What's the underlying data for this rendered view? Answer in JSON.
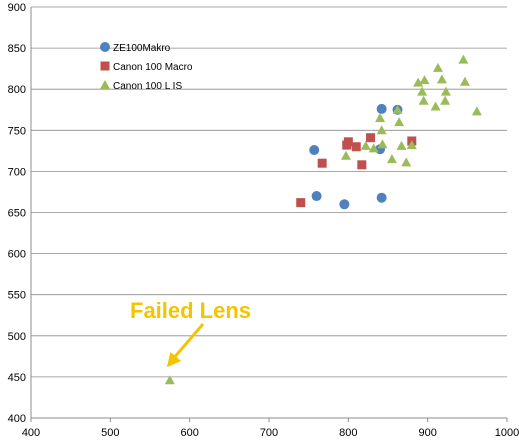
{
  "chart_data": {
    "type": "scatter",
    "title": "",
    "xlabel": "",
    "ylabel": "",
    "xlim": [
      400,
      1000
    ],
    "ylim": [
      400,
      900
    ],
    "x_ticks": [
      400,
      500,
      600,
      700,
      800,
      900,
      1000
    ],
    "y_ticks": [
      400,
      450,
      500,
      550,
      600,
      650,
      700,
      750,
      800,
      850,
      900
    ],
    "grid": "horizontal",
    "legend_placement": "upper-left inside plot",
    "series": [
      {
        "name": "ZE100Makro",
        "color": "#4f81bd",
        "marker": "circle",
        "points": [
          {
            "x": 757,
            "y": 726
          },
          {
            "x": 760,
            "y": 670
          },
          {
            "x": 795,
            "y": 660
          },
          {
            "x": 840,
            "y": 727
          },
          {
            "x": 842,
            "y": 776
          },
          {
            "x": 842,
            "y": 668
          },
          {
            "x": 862,
            "y": 775
          }
        ]
      },
      {
        "name": "Canon 100 Macro",
        "color": "#c0504d",
        "marker": "square",
        "points": [
          {
            "x": 740,
            "y": 662
          },
          {
            "x": 767,
            "y": 710
          },
          {
            "x": 798,
            "y": 732
          },
          {
            "x": 800,
            "y": 736
          },
          {
            "x": 810,
            "y": 730
          },
          {
            "x": 817,
            "y": 708
          },
          {
            "x": 828,
            "y": 741
          },
          {
            "x": 880,
            "y": 737
          }
        ]
      },
      {
        "name": "Canon 100 L IS",
        "color": "#9bbb59",
        "marker": "triangle",
        "points": [
          {
            "x": 575,
            "y": 446
          },
          {
            "x": 797,
            "y": 719
          },
          {
            "x": 822,
            "y": 731
          },
          {
            "x": 832,
            "y": 728
          },
          {
            "x": 840,
            "y": 765
          },
          {
            "x": 842,
            "y": 750
          },
          {
            "x": 843,
            "y": 733
          },
          {
            "x": 855,
            "y": 715
          },
          {
            "x": 862,
            "y": 775
          },
          {
            "x": 864,
            "y": 760
          },
          {
            "x": 867,
            "y": 731
          },
          {
            "x": 873,
            "y": 711
          },
          {
            "x": 880,
            "y": 732
          },
          {
            "x": 888,
            "y": 808
          },
          {
            "x": 893,
            "y": 797
          },
          {
            "x": 895,
            "y": 786
          },
          {
            "x": 896,
            "y": 811
          },
          {
            "x": 910,
            "y": 779
          },
          {
            "x": 913,
            "y": 826
          },
          {
            "x": 918,
            "y": 812
          },
          {
            "x": 922,
            "y": 786
          },
          {
            "x": 923,
            "y": 797
          },
          {
            "x": 945,
            "y": 836
          },
          {
            "x": 947,
            "y": 809
          },
          {
            "x": 962,
            "y": 773
          }
        ]
      }
    ],
    "annotations": [
      {
        "text": "Failed Lens",
        "color": "#f5c400",
        "points_to": {
          "x": 575,
          "y": 446
        }
      }
    ]
  }
}
